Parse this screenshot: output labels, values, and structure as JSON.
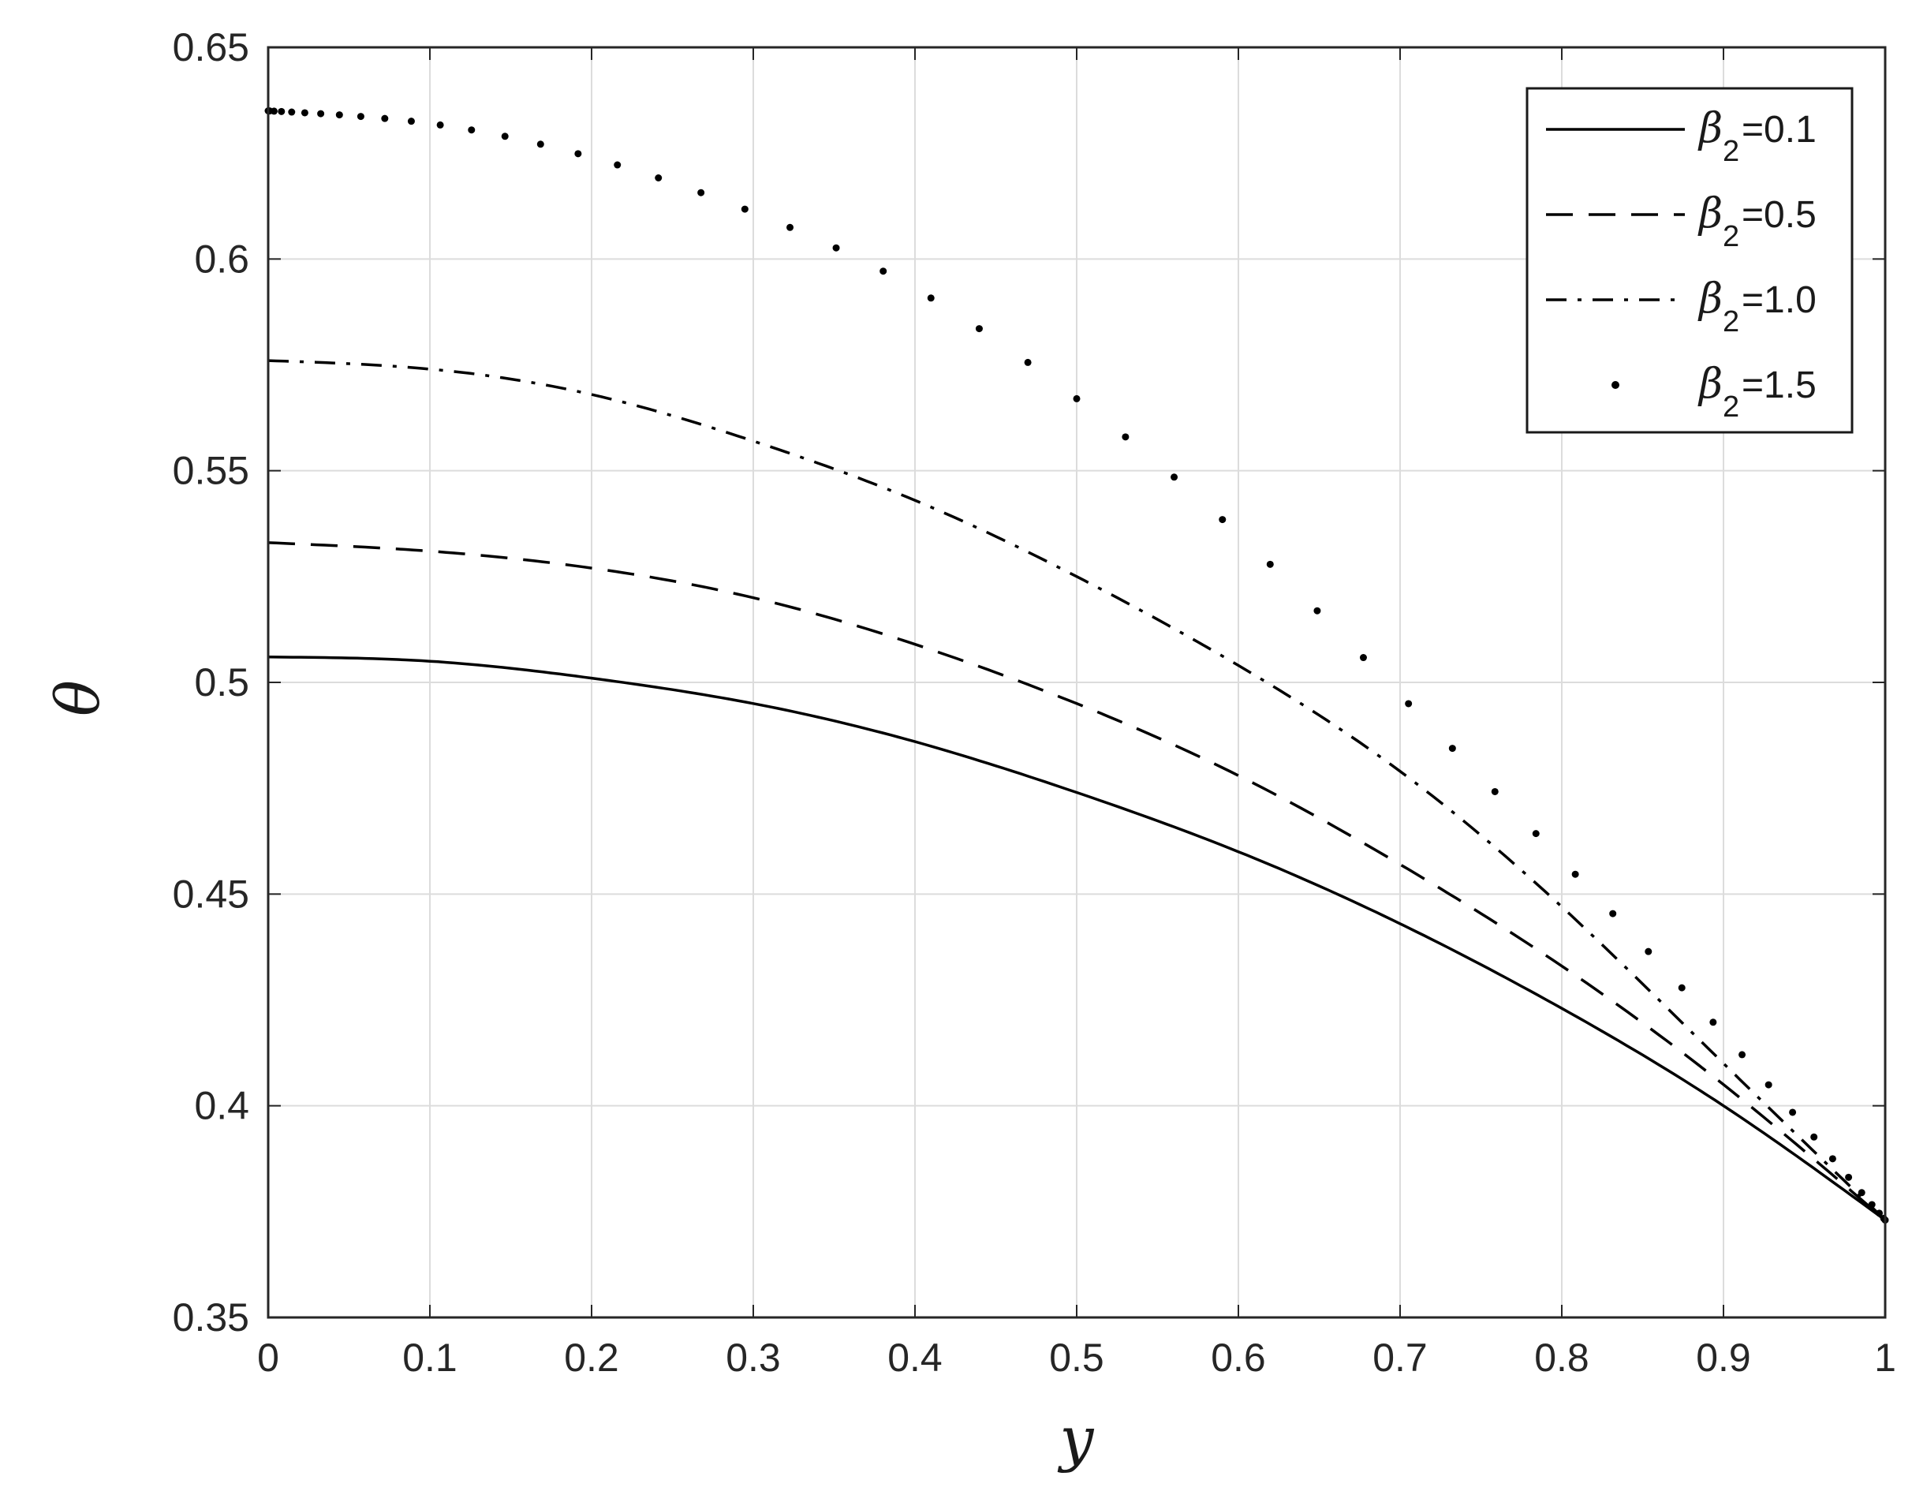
{
  "chart_data": {
    "type": "line",
    "xlabel": "y",
    "ylabel": "θ",
    "xlim": [
      0,
      1
    ],
    "ylim": [
      0.35,
      0.65
    ],
    "x_ticks": [
      "0",
      "0.1",
      "0.2",
      "0.3",
      "0.4",
      "0.5",
      "0.6",
      "0.7",
      "0.8",
      "0.9",
      "1"
    ],
    "y_ticks": [
      "0.35",
      "0.4",
      "0.45",
      "0.5",
      "0.55",
      "0.6",
      "0.65"
    ],
    "grid": true,
    "legend_position": "top-right",
    "x": [
      0,
      0.1,
      0.2,
      0.3,
      0.4,
      0.5,
      0.6,
      0.7,
      0.8,
      0.9,
      1.0
    ],
    "series": [
      {
        "name": "β2=0.1",
        "symbol": "β",
        "subscript": "2",
        "value_label": "=0.1",
        "line_style": "solid",
        "values": [
          0.506,
          0.505,
          0.501,
          0.495,
          0.486,
          0.474,
          0.46,
          0.443,
          0.423,
          0.4,
          0.373
        ]
      },
      {
        "name": "β2=0.5",
        "symbol": "β",
        "subscript": "2",
        "value_label": "=0.5",
        "line_style": "dashed",
        "values": [
          0.533,
          0.531,
          0.527,
          0.52,
          0.509,
          0.495,
          0.478,
          0.457,
          0.433,
          0.405,
          0.373
        ]
      },
      {
        "name": "β2=1.0",
        "symbol": "β",
        "subscript": "2",
        "value_label": "=1.0",
        "line_style": "dashdot",
        "values": [
          0.576,
          0.574,
          0.568,
          0.557,
          0.543,
          0.525,
          0.504,
          0.479,
          0.447,
          0.41,
          0.373
        ]
      },
      {
        "name": "β2=1.5",
        "symbol": "β",
        "subscript": "2",
        "value_label": "=1.5",
        "line_style": "dotted",
        "values": [
          0.635,
          0.632,
          0.624,
          0.611,
          0.593,
          0.567,
          0.535,
          0.497,
          0.458,
          0.417,
          0.373
        ]
      }
    ],
    "colors": {
      "line": "#000000",
      "grid": "#dcdcdc",
      "axis": "#262626"
    }
  }
}
